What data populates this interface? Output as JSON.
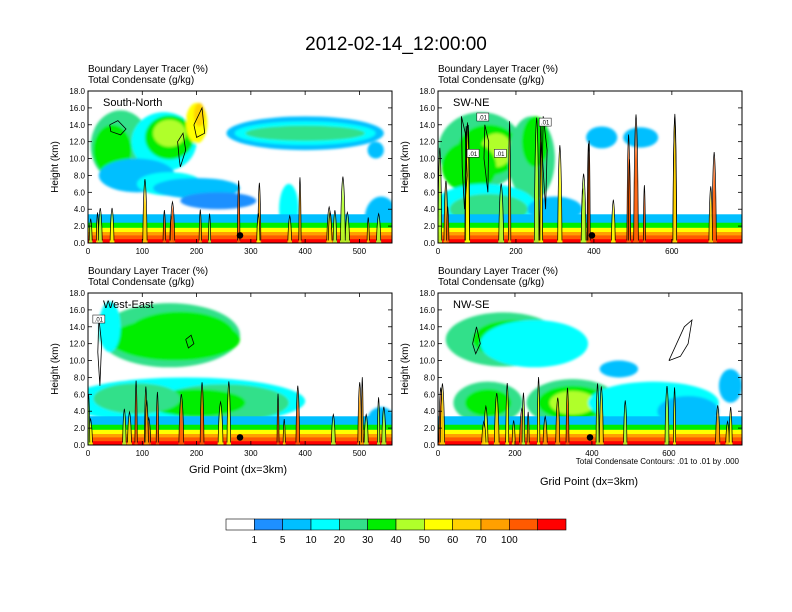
{
  "figure": {
    "title": "2012-02-14_12:00:00",
    "xlabel": "Grid Point (dx=3km)",
    "contour_note": "Total Condensate Contours: .01 to .01 by .000"
  },
  "colorbar": {
    "labels": [
      "1",
      "5",
      "10",
      "20",
      "30",
      "40",
      "50",
      "60",
      "70",
      "100"
    ],
    "colors": [
      "#ffffff",
      "#1e90ff",
      "#00bfff",
      "#00ffff",
      "#33e08a",
      "#00ee00",
      "#b0ff2a",
      "#ffff00",
      "#ffd200",
      "#ffa000",
      "#ff5a00",
      "#ff0000"
    ]
  },
  "chart_data": [
    {
      "type": "heatmap",
      "header_line1": "Boundary Layer Tracer   (%)",
      "header_line2": "Total Condensate   (g/kg)",
      "label": "South-North",
      "ylabel": "Height (km)",
      "xlim": [
        0,
        560
      ],
      "ylim": [
        0,
        18
      ],
      "xticks": [
        "0",
        "100",
        "200",
        "300",
        "400",
        "500"
      ],
      "yticks": [
        "0.0",
        "2.0",
        "4.0",
        "6.0",
        "8.0",
        "10.0",
        "12.0",
        "14.0",
        "16.0",
        "18.0"
      ],
      "contour_labels": [],
      "marker_x": 280
    },
    {
      "type": "heatmap",
      "header_line1": "Boundary Layer Tracer   (%)",
      "header_line2": "Total Condensate   (g/kg)",
      "label": "SW-NE",
      "ylabel": "Height (km)",
      "xlim": [
        0,
        780
      ],
      "ylim": [
        0,
        18
      ],
      "xticks": [
        "0",
        "200",
        "400",
        "600"
      ],
      "yticks": [
        "0.0",
        "2.0",
        "4.0",
        "6.0",
        "8.0",
        "10.0",
        "12.0",
        "14.0",
        "16.0",
        "18.0"
      ],
      "contour_labels": [
        ".01",
        ".01",
        ".01",
        ".01"
      ],
      "marker_x": 395
    },
    {
      "type": "heatmap",
      "header_line1": "Boundary Layer Tracer   (%)",
      "header_line2": "Total Condensate   (g/kg)",
      "label": "West-East",
      "ylabel": "Height (km)",
      "xlim": [
        0,
        560
      ],
      "ylim": [
        0,
        18
      ],
      "xticks": [
        "0",
        "100",
        "200",
        "300",
        "400",
        "500"
      ],
      "yticks": [
        "0.0",
        "2.0",
        "4.0",
        "6.0",
        "8.0",
        "10.0",
        "12.0",
        "14.0",
        "16.0",
        "18.0"
      ],
      "contour_labels": [
        ".01"
      ],
      "marker_x": 280
    },
    {
      "type": "heatmap",
      "header_line1": "Boundary Layer Tracer   (%)",
      "header_line2": "Total Condensate   (g/kg)",
      "label": "NW-SE",
      "ylabel": "Height (km)",
      "xlim": [
        0,
        790
      ],
      "ylim": [
        0,
        18
      ],
      "xticks": [
        "0",
        "200",
        "400",
        "600"
      ],
      "yticks": [
        "0.0",
        "2.0",
        "4.0",
        "6.0",
        "8.0",
        "10.0",
        "12.0",
        "14.0",
        "16.0",
        "18.0"
      ],
      "contour_labels": [],
      "marker_x": 395
    }
  ]
}
